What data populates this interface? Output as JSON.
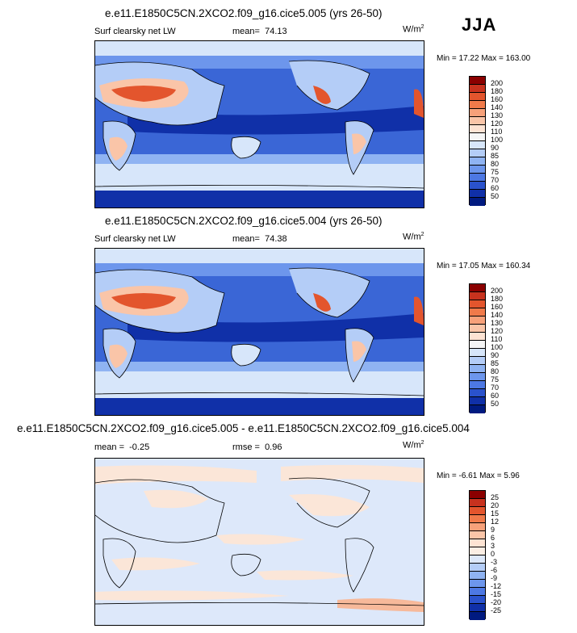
{
  "season": "JJA",
  "panels": [
    {
      "title": "e.e11.E1850C5CN.2XCO2.f09_g16.cice5.005 (yrs 26-50)",
      "variable": "Surf clearsky net LW",
      "mean_label": "mean=",
      "mean_value": "74.13",
      "units_base": "W/m",
      "units_exp": "2",
      "min_label": "Min =",
      "min_value": "17.22",
      "max_label": "Max =",
      "max_value": "163.00",
      "levels": [
        "200",
        "180",
        "160",
        "140",
        "130",
        "120",
        "110",
        "100",
        "90",
        "85",
        "80",
        "75",
        "70",
        "60",
        "50"
      ],
      "colors": [
        "#8b0000",
        "#c8321e",
        "#e3552d",
        "#f07a4a",
        "#f7a17a",
        "#fac5a8",
        "#fde3d3",
        "#f5f5f5",
        "#d7e6fa",
        "#b4cdf7",
        "#8fb3f2",
        "#6d96ec",
        "#4d78e3",
        "#2a52cc",
        "#1030a8",
        "#001a80"
      ]
    },
    {
      "title": "e.e11.E1850C5CN.2XCO2.f09_g16.cice5.004 (yrs 26-50)",
      "variable": "Surf clearsky net LW",
      "mean_label": "mean=",
      "mean_value": "74.38",
      "units_base": "W/m",
      "units_exp": "2",
      "min_label": "Min =",
      "min_value": "17.05",
      "max_label": "Max =",
      "max_value": "160.34",
      "levels": [
        "200",
        "180",
        "160",
        "140",
        "130",
        "120",
        "110",
        "100",
        "90",
        "85",
        "80",
        "75",
        "70",
        "60",
        "50"
      ],
      "colors": [
        "#8b0000",
        "#c8321e",
        "#e3552d",
        "#f07a4a",
        "#f7a17a",
        "#fac5a8",
        "#fde3d3",
        "#f5f5f5",
        "#d7e6fa",
        "#b4cdf7",
        "#8fb3f2",
        "#6d96ec",
        "#4d78e3",
        "#2a52cc",
        "#1030a8",
        "#001a80"
      ]
    },
    {
      "title": "e.e11.E1850C5CN.2XCO2.f09_g16.cice5.005 - e.e11.E1850C5CN.2XCO2.f09_g16.cice5.004",
      "mean_label": "mean =",
      "mean_value": "-0.25",
      "rmse_label": "rmse =",
      "rmse_value": "0.96",
      "units_base": "W/m",
      "units_exp": "2",
      "min_label": "Min =",
      "min_value": "-6.61",
      "max_label": "Max =",
      "max_value": "5.96",
      "levels": [
        "25",
        "20",
        "15",
        "12",
        "9",
        "6",
        "3",
        "0",
        "-3",
        "-6",
        "-9",
        "-12",
        "-15",
        "-20",
        "-25"
      ],
      "colors": [
        "#8b0000",
        "#c8321e",
        "#e3552d",
        "#f07a4a",
        "#f7a17a",
        "#fac5a8",
        "#fde3d3",
        "#fbeee4",
        "#dde8fa",
        "#b4cdf7",
        "#8fb3f2",
        "#6d96ec",
        "#4d78e3",
        "#2a52cc",
        "#1030a8",
        "#001a80"
      ]
    }
  ]
}
